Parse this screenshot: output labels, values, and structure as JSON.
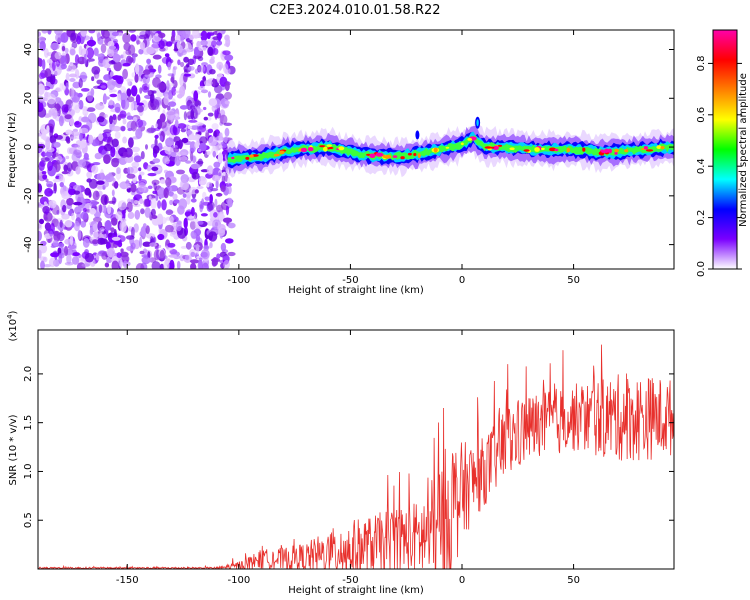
{
  "title": "C2E3.2024.010.01.58.R22",
  "chart_data": [
    {
      "type": "heatmap",
      "xlabel": "Height of straight line (km)",
      "ylabel": "Frequency (Hz)",
      "xlim": [
        -190,
        95
      ],
      "ylim": [
        -50,
        48
      ],
      "xticks": [
        -150,
        -100,
        -50,
        0,
        50
      ],
      "yticks": [
        -40,
        -20,
        0,
        20,
        40
      ],
      "noise_region": [
        -190,
        -105
      ],
      "signal_ridge": {
        "x": [
          -105,
          -90,
          -75,
          -60,
          -45,
          -30,
          -20,
          -10,
          0,
          5,
          10,
          20,
          30,
          40,
          50,
          60,
          70,
          80,
          95
        ],
        "y": [
          -5,
          -4,
          -1,
          0,
          -3,
          -4,
          -3,
          -1,
          1,
          4,
          0,
          0,
          -1,
          -1,
          -1,
          -2,
          -2,
          -1,
          0
        ]
      },
      "colorbar": {
        "label": "Normalized spectral amplitude",
        "range": [
          0,
          0.93
        ],
        "ticks": [
          "0.0",
          "0.2",
          "0.4",
          "0.6",
          "0.8"
        ],
        "colors": [
          "#ffffff",
          "#7a00ff",
          "#0000ff",
          "#00ffff",
          "#00ff00",
          "#ffff00",
          "#ff7f00",
          "#ff0000",
          "#ff00aa"
        ]
      }
    },
    {
      "type": "line",
      "xlabel": "Height of straight line (km)",
      "ylabel": "SNR (10 * v/v)",
      "y_multiplier": "(x10",
      "y_multiplier_exp": "4",
      "y_multiplier_close": ")",
      "xlim": [
        -190,
        95
      ],
      "ylim": [
        0,
        2.45
      ],
      "xticks": [
        -150,
        -100,
        -50,
        0,
        50
      ],
      "yticks": [
        "0.5",
        "1.0",
        "1.5",
        "2.0"
      ],
      "ytick_values": [
        0.5,
        1.0,
        1.5,
        2.0
      ],
      "color": "#e8302c",
      "envelope": {
        "x": [
          -190,
          -110,
          -100,
          -90,
          -80,
          -70,
          -60,
          -50,
          -40,
          -30,
          -20,
          -15,
          -10,
          -5,
          0,
          10,
          20,
          30,
          40,
          50,
          60,
          70,
          80,
          95
        ],
        "base": [
          0.01,
          0.01,
          0.03,
          0.1,
          0.1,
          0.12,
          0.15,
          0.2,
          0.25,
          0.3,
          0.3,
          0.35,
          0.4,
          0.6,
          0.8,
          1.0,
          1.3,
          1.45,
          1.5,
          1.55,
          1.55,
          1.55,
          1.55,
          1.55
        ],
        "spread": [
          0.01,
          0.01,
          0.05,
          0.1,
          0.12,
          0.15,
          0.25,
          0.3,
          0.3,
          0.35,
          0.4,
          0.5,
          0.7,
          0.8,
          0.5,
          0.35,
          0.4,
          0.35,
          0.35,
          0.35,
          0.4,
          0.45,
          0.45,
          0.4
        ]
      }
    }
  ]
}
